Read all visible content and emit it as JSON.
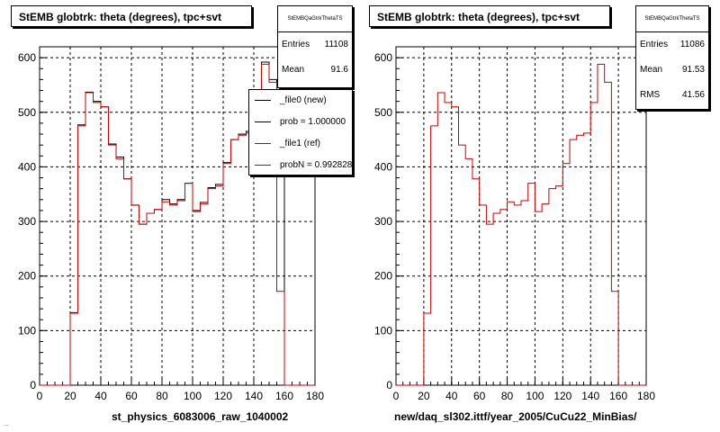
{
  "panels": [
    {
      "title": "StEMB globtrk: theta (degrees), tpc+svt",
      "xlabel": "st_physics_6083006_raw_1040002",
      "stats": {
        "name": "StEMBQaGtrkThetaTS",
        "entries_label": "Entries",
        "entries": "11108",
        "mean_label": "Mean",
        "mean": "91.6"
      },
      "legend": [
        {
          "label": "_file0 (new)",
          "color": "#000000"
        },
        {
          "label": "prob = 1.000000",
          "color": "#000000"
        },
        {
          "label": "_file1 (ref)",
          "color": "#cc0000"
        },
        {
          "label": "probN = 0.992828",
          "color": "#cc0000"
        }
      ]
    },
    {
      "title": "StEMB globtrk: theta (degrees), tpc+svt",
      "xlabel": "new/daq_sl302.ittf/year_2005/CuCu22_MinBias/",
      "stats": {
        "name": "StEMBQaGtrkThetaTS",
        "entries_label": "Entries",
        "entries": "11086",
        "mean_label": "Mean",
        "mean": "91.53",
        "rms_label": "RMS",
        "rms": "41.56"
      }
    }
  ],
  "footer_text": "...",
  "chart_data": [
    {
      "type": "histogram",
      "xlim": [
        0,
        180
      ],
      "ylim": [
        0,
        620
      ],
      "xticks": [
        0,
        20,
        40,
        60,
        80,
        100,
        120,
        140,
        160,
        180
      ],
      "yticks": [
        0,
        100,
        200,
        300,
        400,
        500,
        600
      ],
      "grid": true,
      "bin_width": 5,
      "x": [
        0,
        5,
        10,
        15,
        20,
        25,
        30,
        35,
        40,
        45,
        50,
        55,
        60,
        65,
        70,
        75,
        80,
        85,
        90,
        95,
        100,
        105,
        110,
        115,
        120,
        125,
        130,
        135,
        140,
        145,
        150,
        155,
        160,
        165,
        170,
        175
      ],
      "series": [
        {
          "name": "_file0 (new)",
          "color": "#000000",
          "values": [
            0,
            0,
            0,
            0,
            133,
            477,
            537,
            520,
            510,
            442,
            418,
            378,
            330,
            295,
            315,
            322,
            340,
            332,
            340,
            370,
            320,
            335,
            362,
            368,
            408,
            450,
            460,
            465,
            520,
            592,
            560,
            500,
            0,
            0,
            0,
            0
          ]
        },
        {
          "name": "_file1 (ref)",
          "color": "#cc0000",
          "values": [
            0,
            0,
            0,
            0,
            132,
            475,
            536,
            518,
            510,
            440,
            415,
            378,
            330,
            295,
            315,
            322,
            336,
            330,
            338,
            370,
            318,
            332,
            360,
            365,
            406,
            450,
            458,
            462,
            518,
            588,
            555,
            172,
            0,
            0,
            0,
            0
          ]
        }
      ]
    },
    {
      "type": "histogram",
      "xlim": [
        0,
        180
      ],
      "ylim": [
        0,
        620
      ],
      "xticks": [
        0,
        20,
        40,
        60,
        80,
        100,
        120,
        140,
        160,
        180
      ],
      "yticks": [
        0,
        100,
        200,
        300,
        400,
        500,
        600
      ],
      "grid": true,
      "bin_width": 5,
      "x": [
        0,
        5,
        10,
        15,
        20,
        25,
        30,
        35,
        40,
        45,
        50,
        55,
        60,
        65,
        70,
        75,
        80,
        85,
        90,
        95,
        100,
        105,
        110,
        115,
        120,
        125,
        130,
        135,
        140,
        145,
        150,
        155,
        160,
        165,
        170,
        175
      ],
      "series": [
        {
          "color": "#cc0000",
          "values": [
            0,
            0,
            0,
            0,
            132,
            475,
            536,
            518,
            510,
            440,
            415,
            378,
            330,
            295,
            315,
            322,
            336,
            330,
            338,
            370,
            318,
            332,
            360,
            365,
            406,
            450,
            458,
            462,
            518,
            588,
            555,
            172,
            0,
            0,
            0,
            0
          ]
        }
      ]
    }
  ]
}
